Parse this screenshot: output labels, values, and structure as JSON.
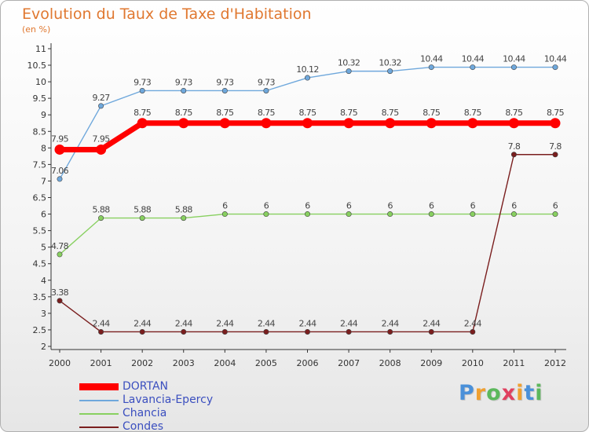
{
  "title": "Evolution du Taux de Taxe d'Habitation",
  "unit": "(en %)",
  "logo": {
    "text": "Proxiti",
    "letter_colors": [
      "#4a90d9",
      "#f0a030",
      "#5cb85c",
      "#e04060",
      "#f0a030",
      "#4a90d9",
      "#5cb85c"
    ]
  },
  "chart_data": {
    "type": "line",
    "title": "Evolution du Taux de Taxe d'Habitation",
    "ylabel": "(en %)",
    "xlabel": "",
    "x": [
      "2000",
      "2001",
      "2002",
      "2003",
      "2004",
      "2005",
      "2006",
      "2007",
      "2008",
      "2009",
      "2010",
      "2011",
      "2012"
    ],
    "ylim": [
      2,
      11
    ],
    "yticks": [
      "2",
      "2.5",
      "3",
      "3.5",
      "4",
      "4.5",
      "5",
      "5.5",
      "6",
      "6.5",
      "7",
      "7.5",
      "8",
      "8.5",
      "9",
      "9.5",
      "10",
      "10.5",
      "11"
    ],
    "grid": false,
    "legend_position": "bottom-left",
    "series": [
      {
        "name": "DORTAN",
        "color": "#ff0000",
        "bold": true,
        "values": [
          7.95,
          7.95,
          8.75,
          8.75,
          8.75,
          8.75,
          8.75,
          8.75,
          8.75,
          8.75,
          8.75,
          8.75,
          8.75
        ],
        "labels": [
          "7.95",
          "7.95",
          "8.75",
          "8.75",
          "8.75",
          "8.75",
          "8.75",
          "8.75",
          "8.75",
          "8.75",
          "8.75",
          "8.75",
          "8.75"
        ]
      },
      {
        "name": "Lavancia-Epercy",
        "color": "#6fa8dc",
        "bold": false,
        "values": [
          7.06,
          9.27,
          9.73,
          9.73,
          9.73,
          9.73,
          10.12,
          10.32,
          10.32,
          10.44,
          10.44,
          10.44,
          10.44
        ],
        "labels": [
          "7.06",
          "9.27",
          "9.73",
          "9.73",
          "9.73",
          "9.73",
          "10.12",
          "10.32",
          "10.32",
          "10.44",
          "10.44",
          "10.44",
          "10.44"
        ]
      },
      {
        "name": "Chancia",
        "color": "#88d060",
        "bold": false,
        "values": [
          4.78,
          5.88,
          5.88,
          5.88,
          6,
          6,
          6,
          6,
          6,
          6,
          6,
          6,
          6
        ],
        "labels": [
          "4.78",
          "5.88",
          "5.88",
          "5.88",
          "6",
          "6",
          "6",
          "6",
          "6",
          "6",
          "6",
          "6",
          "6"
        ]
      },
      {
        "name": "Condes",
        "color": "#7a1e1e",
        "bold": false,
        "values": [
          3.38,
          2.44,
          2.44,
          2.44,
          2.44,
          2.44,
          2.44,
          2.44,
          2.44,
          2.44,
          2.44,
          7.8,
          7.8
        ],
        "labels": [
          "3.38",
          "2.44",
          "2.44",
          "2.44",
          "2.44",
          "2.44",
          "2.44",
          "2.44",
          "2.44",
          "2.44",
          "2.44",
          "7.8",
          "7.8"
        ]
      }
    ]
  }
}
